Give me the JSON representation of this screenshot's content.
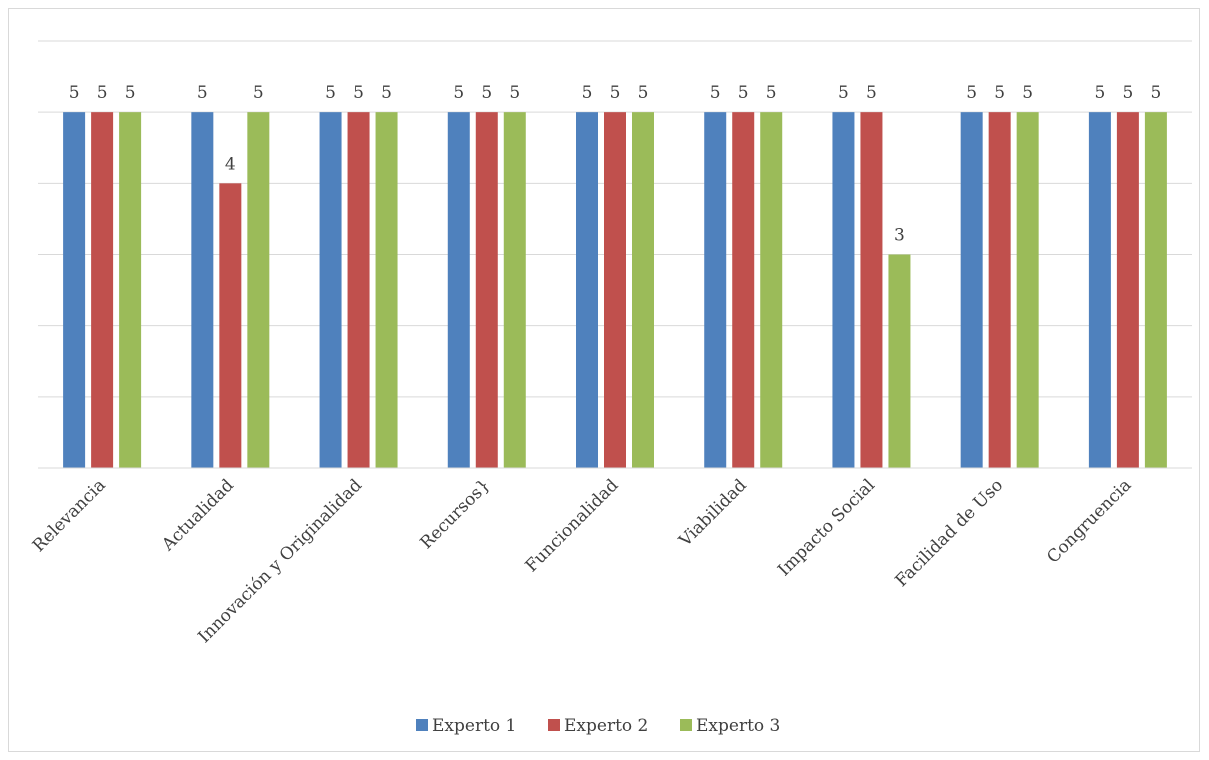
{
  "chart_data": {
    "type": "bar",
    "title": "",
    "xlabel": "",
    "ylabel": "",
    "ylim": [
      0,
      6
    ],
    "y_axis_visible": false,
    "grid": true,
    "legend_position": "bottom",
    "data_labels": true,
    "categories": [
      "Relevancia",
      "Actualidad",
      "Innovación y Originalidad",
      "Recursos}",
      "Funcionalidad",
      "Viabilidad",
      "Impacto Social",
      "Facilidad de Uso",
      "Congruencia"
    ],
    "series": [
      {
        "name": "Experto 1",
        "color": "#4f81bd",
        "values": [
          5,
          5,
          5,
          5,
          5,
          5,
          5,
          5,
          5
        ]
      },
      {
        "name": "Experto 2",
        "color": "#c0504d",
        "values": [
          5,
          4,
          5,
          5,
          5,
          5,
          5,
          5,
          5
        ]
      },
      {
        "name": "Experto 3",
        "color": "#9bbb59",
        "values": [
          5,
          5,
          5,
          5,
          5,
          5,
          3,
          5,
          5
        ]
      }
    ],
    "colors": {
      "gridline": "#d9d9d9",
      "axis": "#d9d9d9",
      "text": "#404040"
    }
  }
}
